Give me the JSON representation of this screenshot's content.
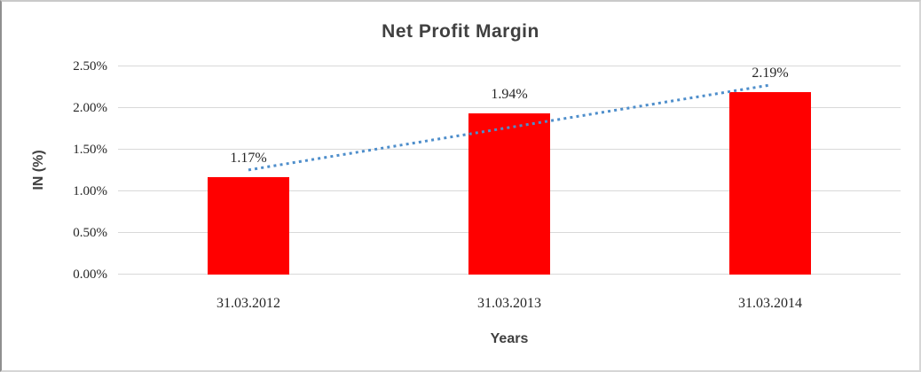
{
  "chart_data": {
    "type": "bar",
    "title": "Net Profit Margin",
    "categories": [
      "31.03.2012",
      "31.03.2013",
      "31.03.2014"
    ],
    "values": [
      1.17,
      1.94,
      2.19
    ],
    "data_labels": [
      "1.17%",
      "1.94%",
      "2.19%"
    ],
    "xlabel": "Years",
    "ylabel": "IN (%)",
    "ylim": [
      0,
      2.5
    ],
    "ytick_step": 0.5,
    "ytick_labels": [
      "0.00%",
      "0.50%",
      "1.00%",
      "1.50%",
      "2.00%",
      "2.50%"
    ],
    "grid": true,
    "legend": "none",
    "bar_color": "#ff0000",
    "gridline_color": "#d9d9d9",
    "label_color": "#262626",
    "axis_title_color": "#404040",
    "trendline": {
      "type": "linear",
      "style": "dotted",
      "color": "#4e8ecb"
    }
  }
}
